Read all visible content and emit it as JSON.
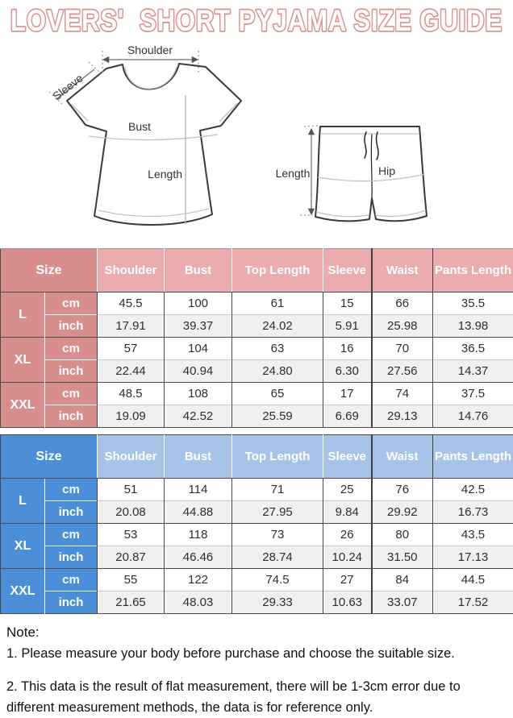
{
  "title": "LOVERS'  SHORT PYJAMA SIZE GUIDE",
  "colors": {
    "title_pink": "#db9292",
    "pink_dark": "#d98e8e",
    "pink_light": "#eaacac",
    "blue_dark": "#4a8fd8",
    "blue_light": "#a7c4e8"
  },
  "diagrams": {
    "top": {
      "shoulder": "Shoulder",
      "sleeve": "Sleeve",
      "bust": "Bust",
      "length": "Length"
    },
    "shorts": {
      "length": "Length",
      "hip": "Hip"
    }
  },
  "tables": [
    {
      "theme": "pink",
      "size_header": "Size",
      "colors": {
        "dark": "#d98e8e",
        "light": "#eaacac"
      },
      "columns": [
        "Shoulder",
        "Bust",
        "Top Length",
        "Sleeve",
        "Waist",
        "Pants Length"
      ],
      "rows": [
        {
          "size": "L",
          "unit": "cm",
          "values": [
            "45.5",
            "100",
            "61",
            "15",
            "66",
            "35.5"
          ]
        },
        {
          "size": "L",
          "unit": "inch",
          "values": [
            "17.91",
            "39.37",
            "24.02",
            "5.91",
            "25.98",
            "13.98"
          ]
        },
        {
          "size": "XL",
          "unit": "cm",
          "values": [
            "57",
            "104",
            "63",
            "16",
            "70",
            "36.5"
          ]
        },
        {
          "size": "XL",
          "unit": "inch",
          "values": [
            "22.44",
            "40.94",
            "24.80",
            "6.30",
            "27.56",
            "14.37"
          ]
        },
        {
          "size": "XXL",
          "unit": "cm",
          "values": [
            "48.5",
            "108",
            "65",
            "17",
            "74",
            "37.5"
          ]
        },
        {
          "size": "XXL",
          "unit": "inch",
          "values": [
            "19.09",
            "42.52",
            "25.59",
            "6.69",
            "29.13",
            "14.76"
          ]
        }
      ]
    },
    {
      "theme": "blue",
      "size_header": "Size",
      "colors": {
        "dark": "#4a8fd8",
        "light": "#a7c4e8"
      },
      "columns": [
        "Shoulder",
        "Bust",
        "Top Length",
        "Sleeve",
        "Waist",
        "Pants Length"
      ],
      "rows": [
        {
          "size": "L",
          "unit": "cm",
          "values": [
            "51",
            "114",
            "71",
            "25",
            "76",
            "42.5"
          ]
        },
        {
          "size": "L",
          "unit": "inch",
          "values": [
            "20.08",
            "44.88",
            "27.95",
            "9.84",
            "29.92",
            "16.73"
          ]
        },
        {
          "size": "XL",
          "unit": "cm",
          "values": [
            "53",
            "118",
            "73",
            "26",
            "80",
            "43.5"
          ]
        },
        {
          "size": "XL",
          "unit": "inch",
          "values": [
            "20.87",
            "46.46",
            "28.74",
            "10.24",
            "31.50",
            "17.13"
          ]
        },
        {
          "size": "XXL",
          "unit": "cm",
          "values": [
            "55",
            "122",
            "74.5",
            "27",
            "84",
            "44.5"
          ]
        },
        {
          "size": "XXL",
          "unit": "inch",
          "values": [
            "21.65",
            "48.03",
            "29.33",
            "10.63",
            "33.07",
            "17.52"
          ]
        }
      ]
    }
  ],
  "note": {
    "heading": "Note:",
    "items": [
      "1. Please measure your body before purchase and choose the suitable size.",
      "2. This data is the result of flat measurement, there will be 1-3cm error due to different measurement methods, the data is for reference only."
    ]
  }
}
